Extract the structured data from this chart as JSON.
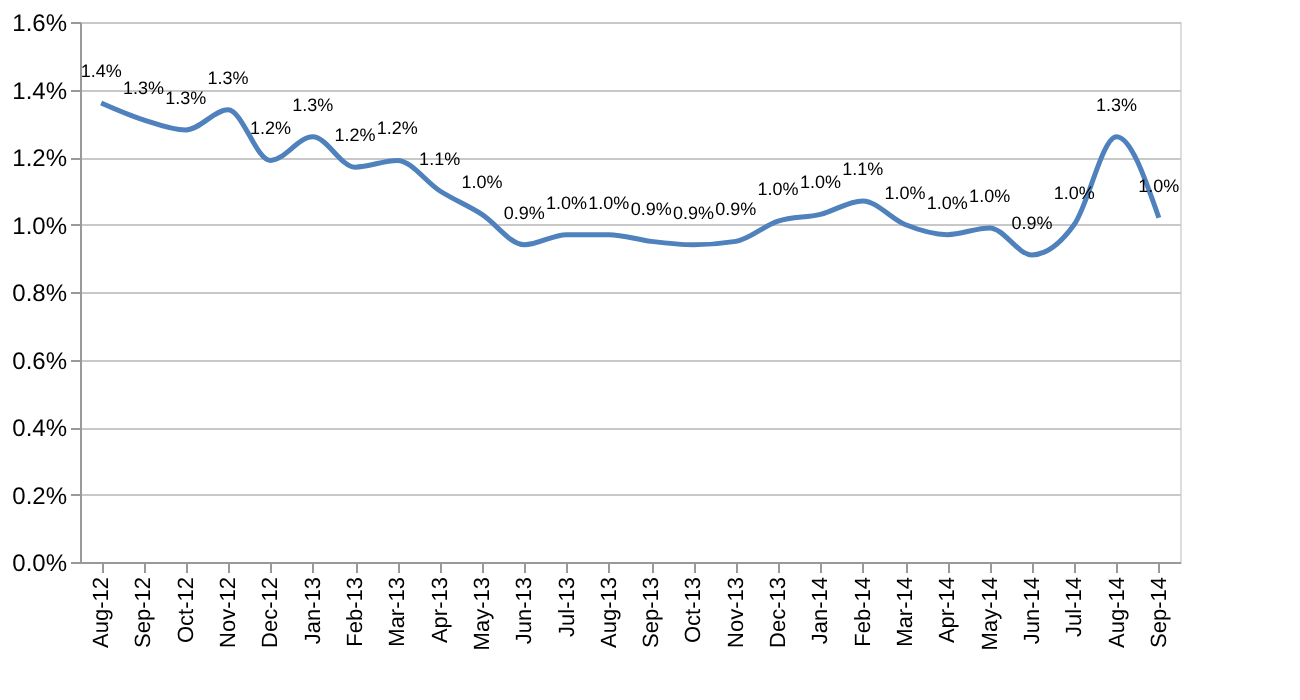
{
  "chart_data": {
    "type": "line",
    "categories": [
      "Aug-12",
      "Sep-12",
      "Oct-12",
      "Nov-12",
      "Dec-12",
      "Jan-13",
      "Feb-13",
      "Mar-13",
      "Apr-13",
      "May-13",
      "Jun-13",
      "Jul-13",
      "Aug-13",
      "Sep-13",
      "Oct-13",
      "Nov-13",
      "Dec-13",
      "Jan-14",
      "Feb-14",
      "Mar-14",
      "Apr-14",
      "May-14",
      "Jun-14",
      "Jul-14",
      "Aug-14",
      "Sep-14"
    ],
    "series": [
      {
        "color": "#4f81bd",
        "values": [
          1.36,
          1.31,
          1.28,
          1.34,
          1.19,
          1.26,
          1.17,
          1.19,
          1.1,
          1.03,
          0.94,
          0.97,
          0.97,
          0.95,
          0.94,
          0.95,
          1.01,
          1.03,
          1.07,
          1.0,
          0.97,
          0.99,
          0.91,
          1.0,
          1.26,
          1.02
        ],
        "value_labels": [
          "1.4%",
          "1.3%",
          "1.3%",
          "1.3%",
          "1.2%",
          "1.3%",
          "1.2%",
          "1.2%",
          "1.1%",
          "1.0%",
          "0.9%",
          "1.0%",
          "1.0%",
          "0.9%",
          "0.9%",
          "0.9%",
          "1.0%",
          "1.0%",
          "1.1%",
          "1.0%",
          "1.0%",
          "1.0%",
          "0.9%",
          "1.0%",
          "1.3%",
          "1.0%"
        ]
      }
    ],
    "ylim": [
      0,
      1.6
    ],
    "yticks": [
      {
        "value": 0,
        "label": "0.0%"
      },
      {
        "value": 0.2,
        "label": "0.2%"
      },
      {
        "value": 0.4,
        "label": "0.4%"
      },
      {
        "value": 0.6,
        "label": "0.6%"
      },
      {
        "value": 0.8,
        "label": "0.8%"
      },
      {
        "value": 1.0,
        "label": "1.0%"
      },
      {
        "value": 1.2,
        "label": "1.2%"
      },
      {
        "value": 1.4,
        "label": "1.4%"
      },
      {
        "value": 1.6,
        "label": "1.6%"
      }
    ],
    "grid": "y",
    "marker": "none",
    "line_style": "solid"
  }
}
